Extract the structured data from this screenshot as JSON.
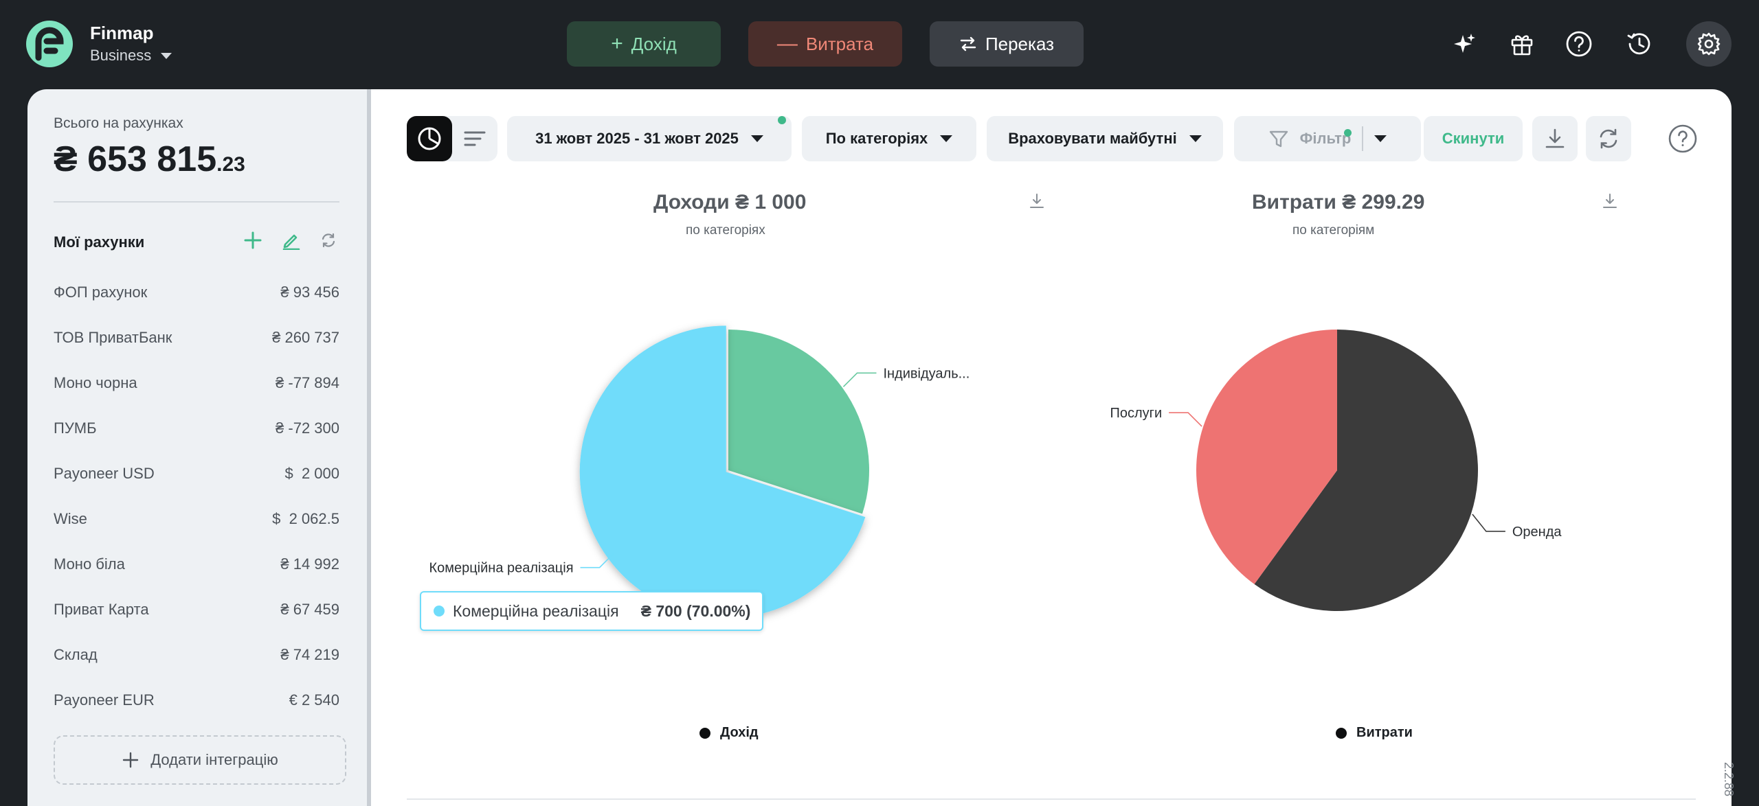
{
  "app": {
    "name": "Finmap",
    "workspace": "Business"
  },
  "toolbar": {
    "income_label": "Дохід",
    "expense_label": "Витрата",
    "transfer_label": "Переказ",
    "icons": [
      "sparkles-icon",
      "gift-icon",
      "help-icon",
      "history-icon",
      "settings-icon"
    ]
  },
  "sidebar": {
    "total_label": "Всього на рахунках",
    "total_currency": "₴",
    "total_integer": "653 815",
    "total_cents": ".23",
    "accounts_title": "Мої рахунки",
    "accounts": [
      {
        "name": "ФОП рахунок",
        "amount": "₴ 93 456"
      },
      {
        "name": "ТОВ ПриватБанк",
        "amount": "₴ 260 737"
      },
      {
        "name": "Моно чорна",
        "amount": "₴ -77 894"
      },
      {
        "name": "ПУМБ",
        "amount": "₴ -72 300"
      },
      {
        "name": "Payoneer USD",
        "amount": "$  2 000"
      },
      {
        "name": "Wise",
        "amount": "$  2 062.5"
      },
      {
        "name": "Моно біла",
        "amount": "₴ 14 992"
      },
      {
        "name": "Приват Карта",
        "amount": "₴ 67 459"
      },
      {
        "name": "Склад",
        "amount": "₴ 74 219"
      },
      {
        "name": "Payoneer EUR",
        "amount": "€ 2 540"
      }
    ],
    "add_integration_label": "Додати інтеграцію"
  },
  "filters": {
    "date_range": "31 жовт 2025 - 31 жовт 2025",
    "grouping": "По категоріях",
    "future": "Враховувати майбутні",
    "filter_label": "Фільтр",
    "reset_label": "Скинути"
  },
  "colors": {
    "income_accent": "#8fe0b5",
    "expense_accent": "#f08878",
    "positive": "#3fb98a",
    "pie_blue": "#6fdcfa",
    "pie_green": "#68c9a0",
    "pie_red": "#ee7372",
    "pie_dark": "#3b3b3b"
  },
  "chart_data": [
    {
      "type": "pie",
      "title": "Доходи ₴ 1 000",
      "subtitle": "по категоріях",
      "legend": "Дохід",
      "slices": [
        {
          "label": "Індивідуаль...",
          "value": 300,
          "color": "#68c9a0"
        },
        {
          "label": "Комерційна реалізація",
          "value": 700,
          "color": "#6fdcfa"
        }
      ],
      "tooltip": {
        "label": "Комерційна реалізація",
        "value": "₴ 700 (70.00%)"
      }
    },
    {
      "type": "pie",
      "title": "Витрати ₴ 299.29",
      "subtitle": "по категоріям",
      "legend": "Витрати",
      "slices": [
        {
          "label": "Оренда",
          "value": 179.57,
          "color": "#3b3b3b"
        },
        {
          "label": "Послуги",
          "value": 119.72,
          "color": "#ee7372"
        }
      ]
    }
  ],
  "version": "2.2.88"
}
